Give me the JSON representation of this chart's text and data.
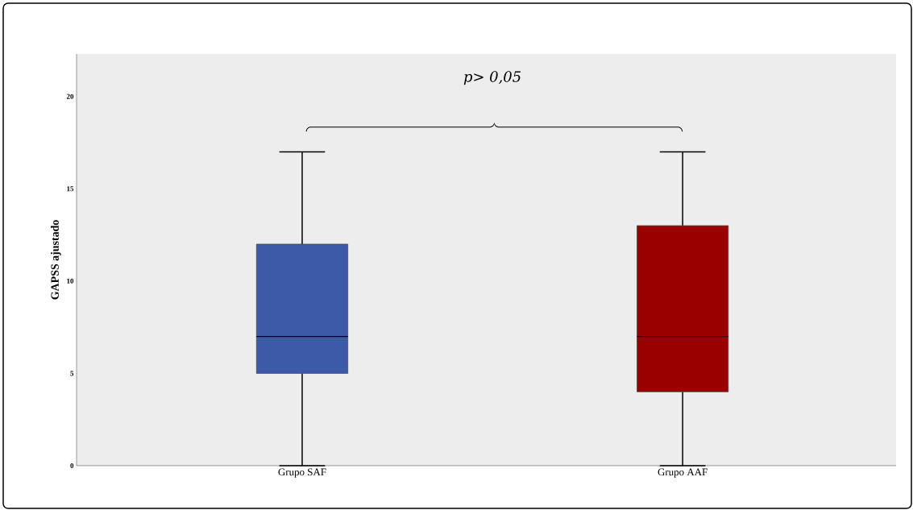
{
  "chart_data": {
    "type": "box",
    "ylabel": "GAPSS ajustado",
    "categories": [
      "Grupo SAF",
      "Grupo AAF"
    ],
    "boxes": [
      {
        "low": 0,
        "q1": 5,
        "median": 7,
        "q3": 12,
        "high": 17
      },
      {
        "low": 0,
        "q1": 4,
        "median": 7,
        "q3": 13,
        "high": 17
      }
    ],
    "colors": [
      "#3d5aa8",
      "#990000"
    ],
    "ylim": [
      0,
      22.3
    ],
    "yticks": [
      0,
      5,
      10,
      15,
      20
    ],
    "annotations": [
      "p> 0,05"
    ]
  }
}
